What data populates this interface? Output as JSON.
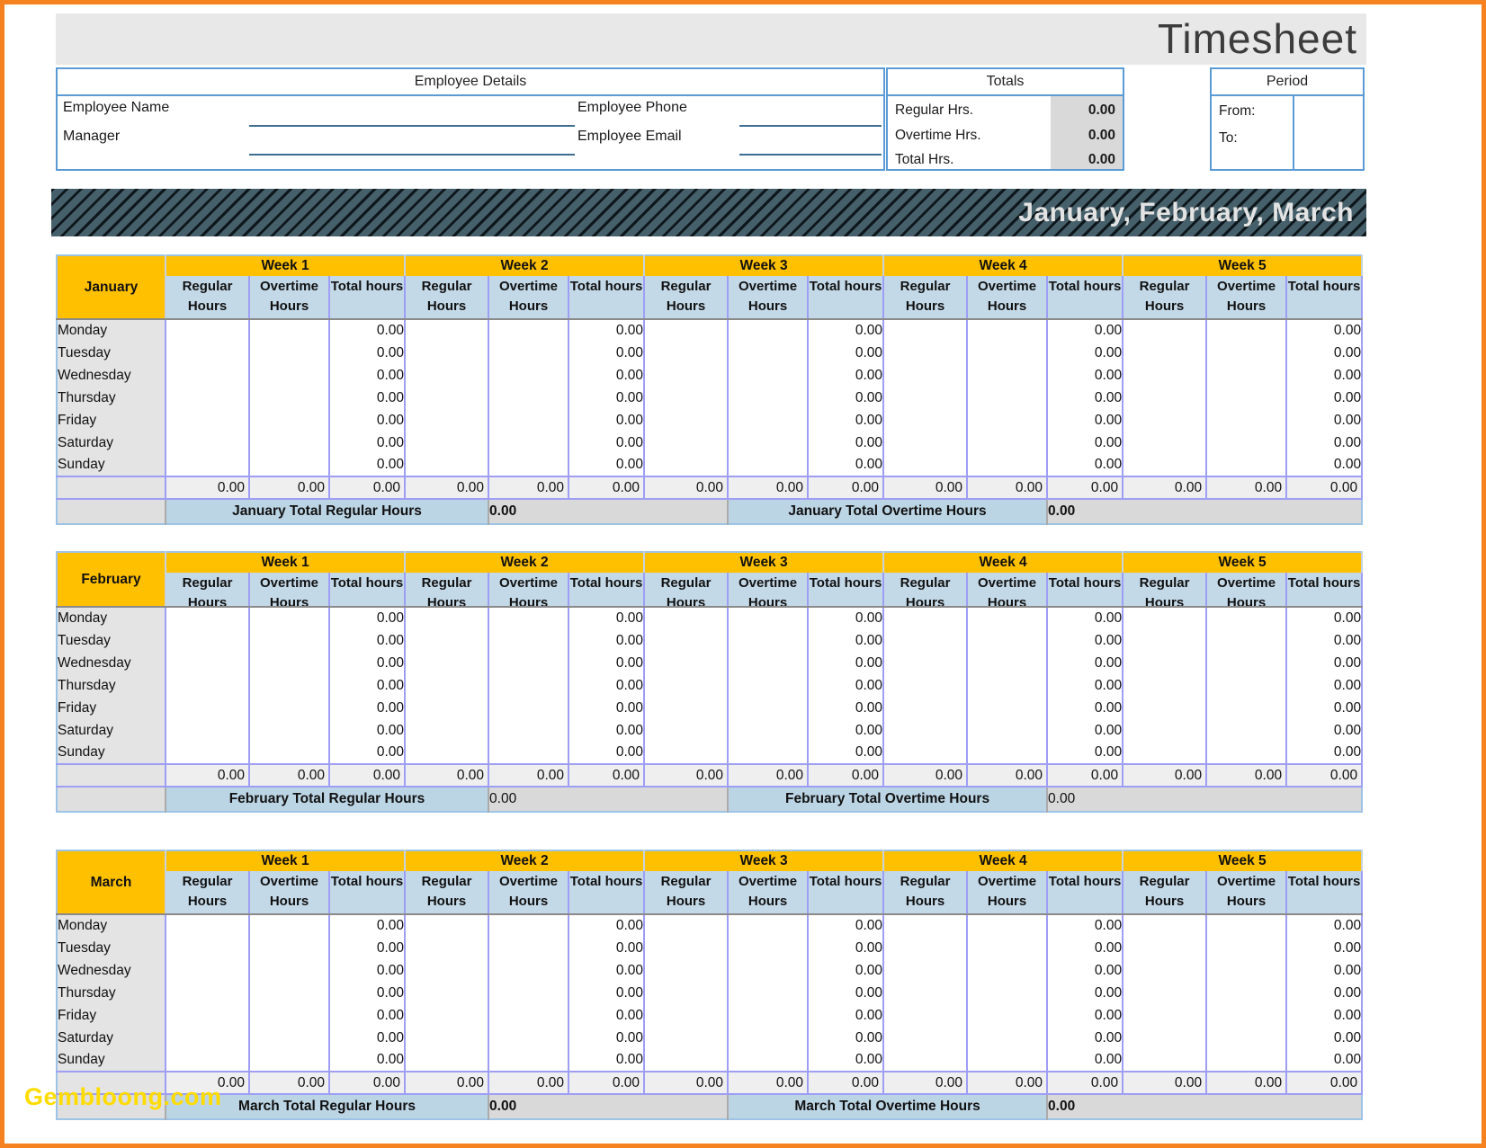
{
  "page": {
    "title": "Timesheet",
    "banner_text": "January, February, March",
    "watermark": "Gembloong.com"
  },
  "employee_details": {
    "header": "Employee Details",
    "name_label": "Employee Name",
    "manager_label": "Manager",
    "phone_label": "Employee Phone",
    "email_label": "Employee Email",
    "name_value": "",
    "manager_value": "",
    "phone_value": "",
    "email_value": ""
  },
  "totals": {
    "header": "Totals",
    "rows": [
      {
        "label": "Regular Hrs.",
        "value": "0.00"
      },
      {
        "label": "Overtime Hrs.",
        "value": "0.00"
      },
      {
        "label": "Total Hrs.",
        "value": "0.00"
      }
    ]
  },
  "period": {
    "header": "Period",
    "from_label": "From:",
    "to_label": "To:",
    "from_value": "",
    "to_value": ""
  },
  "timesheet_spec": {
    "week_labels": [
      "Week 1",
      "Week 2",
      "Week 3",
      "Week 4",
      "Week 5"
    ],
    "col_headers": [
      "Regular Hours",
      "Overtime Hours",
      "Total hours"
    ],
    "days": [
      "Monday",
      "Tuesday",
      "Wednesday",
      "Thursday",
      "Friday",
      "Saturday",
      "Sunday"
    ],
    "empty_value": "",
    "zero_value": "0.00"
  },
  "months": [
    {
      "name": "January",
      "total_regular_label": "January Total Regular Hours",
      "total_regular_value": "0.00",
      "total_overtime_label": "January Total Overtime Hours",
      "total_overtime_value": "0.00"
    },
    {
      "name": "February",
      "total_regular_label": "February Total Regular Hours",
      "total_regular_value": "0.00",
      "total_overtime_label": "February Total Overtime Hours",
      "total_overtime_value": "0.00"
    },
    {
      "name": "March",
      "total_regular_label": "March Total Regular Hours",
      "total_regular_value": "0.00",
      "total_overtime_label": "March Total Overtime Hours",
      "total_overtime_value": "0.00"
    }
  ],
  "colors": {
    "frame_orange": "#F5821F",
    "header_yellow": "#FFC000",
    "column_header_blue": "#C4D9E8",
    "grid_lavender": "#9E9EF5",
    "box_border_blue": "#5B9BD5",
    "banner_dark": "#46606B",
    "value_gray": "#D9D9D9",
    "watermark_yellow": "#FFDC00"
  }
}
